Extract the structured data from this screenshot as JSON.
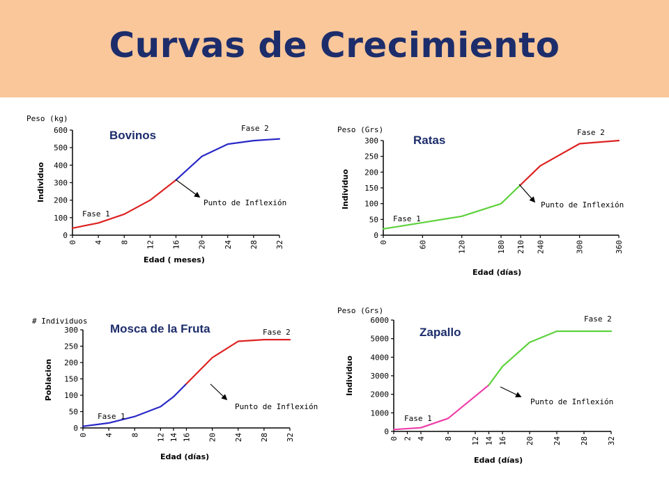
{
  "page": {
    "title": "Curvas de Crecimiento"
  },
  "colors": {
    "banner": "#f9c79a",
    "title": "#1d2d6b",
    "red": "#dd2222",
    "blue": "#2828c8",
    "green": "#5dd23c",
    "pink": "#ee3ca8"
  },
  "chart_data": [
    {
      "type": "line",
      "title": "Bovinos",
      "ylabel": "Individuo",
      "yunit": "Peso (kg)",
      "xlabel": "Edad ( meses)",
      "xlim": [
        0,
        32
      ],
      "ylim": [
        0,
        600
      ],
      "xticks": [
        0,
        4,
        8,
        12,
        16,
        20,
        24,
        28,
        32
      ],
      "yticks": [
        0,
        100,
        200,
        300,
        400,
        500,
        600
      ],
      "phase1_label": "Fase 1",
      "phase2_label": "Fase 2",
      "inflection_label": "Punto de Inflexión",
      "series": [
        {
          "color": "#dd2222",
          "x": [
            0,
            4,
            8,
            12,
            16
          ],
          "y": [
            40,
            70,
            120,
            200,
            315
          ]
        },
        {
          "color": "#2828c8",
          "x": [
            16,
            20,
            24,
            28,
            32
          ],
          "y": [
            315,
            450,
            520,
            540,
            550
          ]
        }
      ],
      "inflection": {
        "x": 16,
        "y": 315
      }
    },
    {
      "type": "line",
      "title": "Ratas",
      "ylabel": "Individuo",
      "yunit": "Peso (Grs)",
      "xlabel": "Edad (días)",
      "xlim": [
        0,
        360
      ],
      "ylim": [
        0,
        300
      ],
      "xticks": [
        0,
        60,
        120,
        180,
        210,
        240,
        300,
        360
      ],
      "yticks": [
        0,
        50,
        100,
        150,
        200,
        250,
        300
      ],
      "phase1_label": "Fase 1",
      "phase2_label": "Fase 2",
      "inflection_label": "Punto de Inflexión",
      "series": [
        {
          "color": "#5dd23c",
          "x": [
            0,
            60,
            120,
            180,
            210
          ],
          "y": [
            20,
            40,
            60,
            100,
            160
          ]
        },
        {
          "color": "#dd2222",
          "x": [
            210,
            240,
            300,
            360
          ],
          "y": [
            160,
            220,
            290,
            300
          ]
        }
      ],
      "inflection": {
        "x": 210,
        "y": 160
      }
    },
    {
      "type": "line",
      "title": "Mosca de la Fruta",
      "ylabel": "Poblacion",
      "yunit": "# Individuos",
      "xlabel": "Edad (días)",
      "xlim": [
        0,
        32
      ],
      "ylim": [
        0,
        300
      ],
      "xticks": [
        0,
        4,
        8,
        12,
        14,
        16,
        20,
        24,
        28,
        32
      ],
      "yticks": [
        0,
        50,
        100,
        150,
        200,
        250,
        300
      ],
      "phase1_label": "Fase 1",
      "phase2_label": "Fase 2",
      "inflection_label": "Punto de Inflexión",
      "series": [
        {
          "color": "#2828c8",
          "x": [
            0,
            4,
            8,
            12,
            14,
            16
          ],
          "y": [
            5,
            15,
            35,
            65,
            95,
            135
          ]
        },
        {
          "color": "#dd2222",
          "x": [
            16,
            20,
            24,
            28,
            32
          ],
          "y": [
            135,
            215,
            265,
            270,
            270
          ]
        }
      ],
      "inflection": {
        "x": 16,
        "y": 135
      }
    },
    {
      "type": "line",
      "title": "Zapallo",
      "ylabel": "Individuo",
      "yunit": "Peso (Grs)",
      "xlabel": "Edad (días)",
      "xlim": [
        0,
        32
      ],
      "ylim": [
        0,
        6000
      ],
      "xticks": [
        0,
        2,
        4,
        8,
        12,
        14,
        16,
        20,
        24,
        28,
        32
      ],
      "yticks": [
        0,
        1000,
        2000,
        3000,
        4000,
        5000,
        6000
      ],
      "phase1_label": "Fase 1",
      "phase2_label": "Fase 2",
      "inflection_label": "Punto de Inflexión",
      "series": [
        {
          "color": "#ee3ca8",
          "x": [
            0,
            4,
            8,
            12,
            14
          ],
          "y": [
            100,
            200,
            700,
            1900,
            2500
          ]
        },
        {
          "color": "#5dd23c",
          "x": [
            14,
            16,
            20,
            24,
            28,
            32
          ],
          "y": [
            2500,
            3500,
            4800,
            5400,
            5400,
            5400
          ]
        }
      ],
      "inflection": {
        "x": 14,
        "y": 2500
      }
    }
  ]
}
